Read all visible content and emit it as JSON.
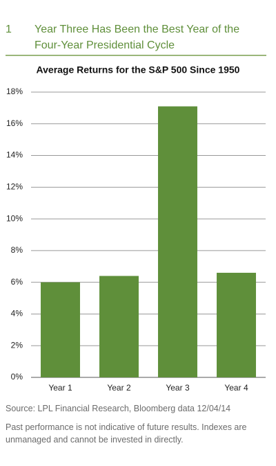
{
  "header": {
    "number": "1",
    "title_lines": [
      "Year Three Has Been the Best Year of the",
      "Four-Year Presidential Cycle"
    ]
  },
  "chart_data": {
    "type": "bar",
    "title": "Average Returns for the S&P 500 Since 1950",
    "categories": [
      "Year 1",
      "Year 2",
      "Year 3",
      "Year 4"
    ],
    "values": [
      6.0,
      6.4,
      17.1,
      6.6
    ],
    "color": "#5f8f3a",
    "ylim": [
      0,
      18
    ],
    "yticks": [
      {
        "value": 0,
        "label": "0%"
      },
      {
        "value": 2,
        "label": "2%"
      },
      {
        "value": 4,
        "label": "4%"
      },
      {
        "value": 6,
        "label": "6%"
      },
      {
        "value": 8,
        "label": "8%"
      },
      {
        "value": 10,
        "label": "10%"
      },
      {
        "value": 12,
        "label": "12%"
      },
      {
        "value": 14,
        "label": "14%"
      },
      {
        "value": 16,
        "label": "16%"
      },
      {
        "value": 18,
        "label": "18%"
      }
    ],
    "grid": true
  },
  "footer": {
    "source": "Source: LPL Financial Research, Bloomberg data 12/04/14",
    "note": "Past performance is not indicative of future results. Indexes are unmanaged and cannot be invested in directly."
  }
}
